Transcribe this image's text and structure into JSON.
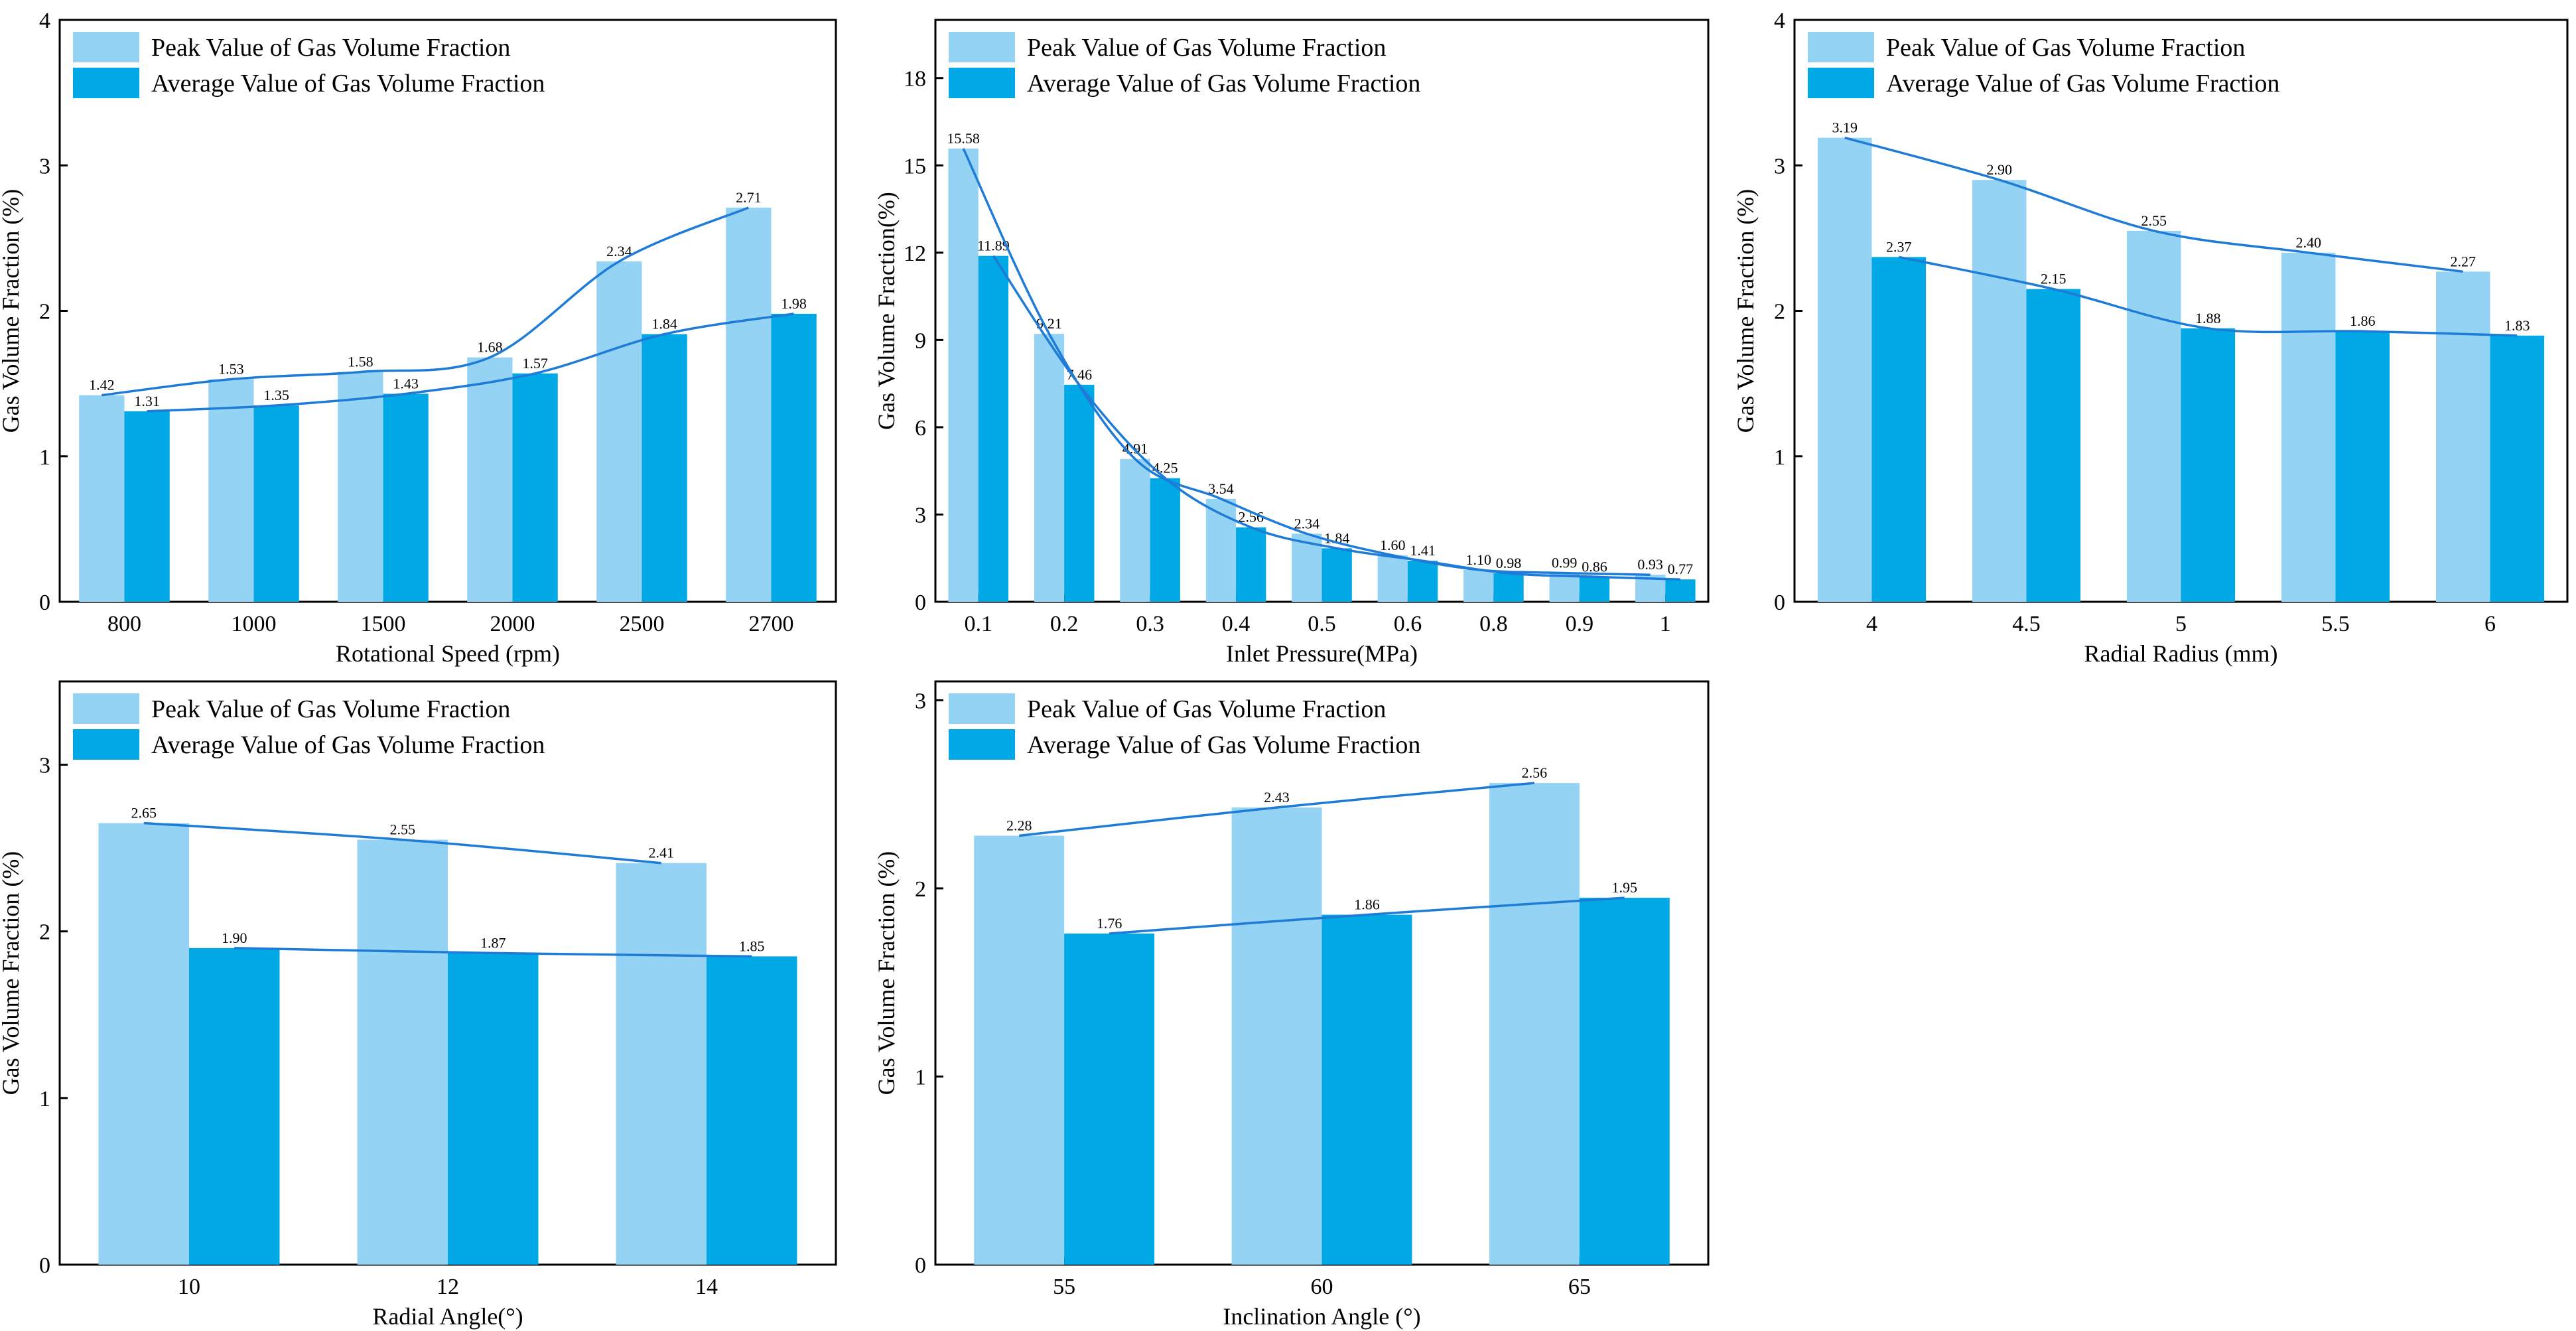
{
  "legend": {
    "peak": "Peak Value of Gas Volume Fraction",
    "average": "Average Value of Gas Volume Fraction"
  },
  "colors": {
    "peak": "#94D3F4",
    "average": "#00A8E5",
    "trend": "#1E7BD8"
  },
  "chart_data": [
    {
      "type": "bar",
      "id": "rotational-speed",
      "categories": [
        "800",
        "1000",
        "1500",
        "2000",
        "2500",
        "2700"
      ],
      "series": [
        {
          "name": "Peak Value of Gas Volume Fraction",
          "values": [
            1.42,
            1.53,
            1.58,
            1.68,
            2.34,
            2.71
          ]
        },
        {
          "name": "Average Value of Gas Volume Fraction",
          "values": [
            1.31,
            1.35,
            1.43,
            1.57,
            1.84,
            1.98
          ]
        }
      ],
      "value_labels": {
        "peak": [
          "1.42",
          "1.53",
          "1.58",
          "1.68",
          "2.34",
          "2.71"
        ],
        "average": [
          "1.31",
          "1.35",
          "1.43",
          "1.57",
          "1.84",
          "1.98"
        ]
      },
      "xlabel": "Rotational Speed (rpm)",
      "ylabel": "Gas Volume Fraction (%)",
      "ylim": [
        0,
        4
      ],
      "yticks": [
        "0",
        "1",
        "2",
        "3",
        "4"
      ],
      "legend_position": "top-left",
      "trend_lines": true
    },
    {
      "type": "bar",
      "id": "inlet-pressure",
      "categories": [
        "0.1",
        "0.2",
        "0.3",
        "0.4",
        "0.5",
        "0.6",
        "0.8",
        "0.9",
        "1"
      ],
      "series": [
        {
          "name": "Peak Value of Gas Volume Fraction",
          "values": [
            15.58,
            9.21,
            4.91,
            3.54,
            2.34,
            1.6,
            1.1,
            0.99,
            0.93
          ]
        },
        {
          "name": "Average Value of Gas Volume Fraction",
          "values": [
            11.89,
            7.46,
            4.25,
            2.56,
            1.84,
            1.41,
            0.98,
            0.86,
            0.77
          ]
        }
      ],
      "value_labels": {
        "peak": [
          "15.58",
          "9.21",
          "4.91",
          "3.54",
          "2.34",
          "1.60",
          "1.10",
          "0.99",
          "0.93"
        ],
        "average": [
          "11.89",
          "7.46",
          "4.25",
          "2.56",
          "1.84",
          "1.41",
          "0.98",
          "0.86",
          "0.77"
        ]
      },
      "xlabel": "Inlet Pressure(MPa)",
      "ylabel": "Gas Volume Fraction(%)",
      "ylim": [
        0,
        20
      ],
      "yticks": [
        "0",
        "3",
        "6",
        "9",
        "12",
        "15",
        "18"
      ],
      "legend_position": "top-left",
      "trend_lines": true
    },
    {
      "type": "bar",
      "id": "radial-radius",
      "categories": [
        "4",
        "4.5",
        "5",
        "5.5",
        "6"
      ],
      "series": [
        {
          "name": "Peak Value of Gas Volume Fraction",
          "values": [
            3.19,
            2.9,
            2.55,
            2.4,
            2.27
          ]
        },
        {
          "name": "Average Value of Gas Volume Fraction",
          "values": [
            2.37,
            2.15,
            1.88,
            1.86,
            1.83
          ]
        }
      ],
      "value_labels": {
        "peak": [
          "3.19",
          "2.90",
          "2.55",
          "2.40",
          "2.27"
        ],
        "average": [
          "2.37",
          "2.15",
          "1.88",
          "1.86",
          "1.83"
        ]
      },
      "xlabel": "Radial Radius (mm)",
      "ylabel": "Gas Volume Fraction (%)",
      "ylim": [
        0,
        4
      ],
      "yticks": [
        "0",
        "1",
        "2",
        "3",
        "4"
      ],
      "legend_position": "top-left",
      "trend_lines": true
    },
    {
      "type": "bar",
      "id": "radial-angle",
      "categories": [
        "10",
        "12",
        "14"
      ],
      "series": [
        {
          "name": "Peak Value of Gas Volume Fraction",
          "values": [
            2.65,
            2.55,
            2.41
          ]
        },
        {
          "name": "Average Value of Gas Volume Fraction",
          "values": [
            1.9,
            1.87,
            1.85
          ]
        }
      ],
      "value_labels": {
        "peak": [
          "2.65",
          "2.55",
          "2.41"
        ],
        "average": [
          "1.90",
          "1.87",
          "1.85"
        ]
      },
      "xlabel": "Radial Angle(°)",
      "ylabel": "Gas Volume Fraction (%)",
      "ylim": [
        0,
        3.5
      ],
      "yticks": [
        "0",
        "1",
        "2",
        "3"
      ],
      "legend_position": "top-left",
      "trend_lines": true
    },
    {
      "type": "bar",
      "id": "inclination-angle",
      "categories": [
        "55",
        "60",
        "65"
      ],
      "series": [
        {
          "name": "Peak Value of Gas Volume Fraction",
          "values": [
            2.28,
            2.43,
            2.56
          ]
        },
        {
          "name": "Average Value of Gas Volume Fraction",
          "values": [
            1.76,
            1.86,
            1.95
          ]
        }
      ],
      "value_labels": {
        "peak": [
          "2.28",
          "2.43",
          "2.56"
        ],
        "average": [
          "1.76",
          "1.86",
          "1.95"
        ]
      },
      "xlabel": "Inclination Angle (°)",
      "ylabel": "Gas Volume Fraction (%)",
      "ylim": [
        0,
        3.1
      ],
      "yticks": [
        "0",
        "1",
        "2",
        "3"
      ],
      "legend_position": "top-left",
      "trend_lines": true
    }
  ]
}
